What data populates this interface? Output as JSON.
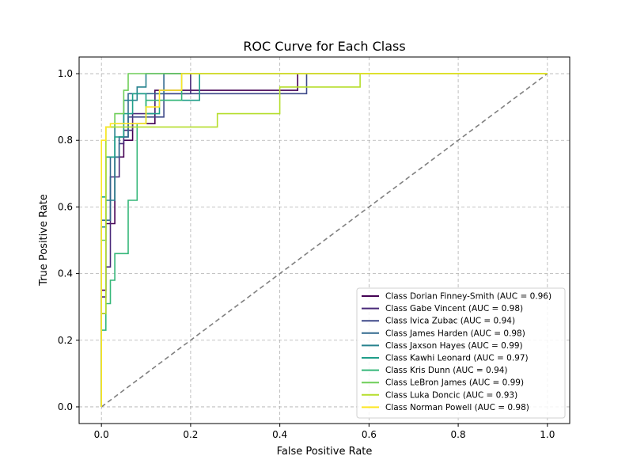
{
  "chart_data": {
    "type": "line",
    "title": "ROC Curve for Each Class",
    "xlabel": "False Positive Rate",
    "ylabel": "True Positive Rate",
    "xlim": [
      -0.05,
      1.05
    ],
    "ylim": [
      -0.05,
      1.05
    ],
    "xticks": [
      0.0,
      0.2,
      0.4,
      0.6,
      0.8,
      1.0
    ],
    "yticks": [
      0.0,
      0.2,
      0.4,
      0.6,
      0.8,
      1.0
    ],
    "xtick_labels": [
      "0.0",
      "0.2",
      "0.4",
      "0.6",
      "0.8",
      "1.0"
    ],
    "ytick_labels": [
      "0.0",
      "0.2",
      "0.4",
      "0.6",
      "0.8",
      "1.0"
    ],
    "grid": true,
    "legend_position": "lower-right",
    "diagonal": {
      "x": [
        0,
        1
      ],
      "y": [
        0,
        1
      ],
      "color": "#808080",
      "style": "dashed"
    },
    "series": [
      {
        "name": "Class Dorian Finney-Smith (AUC = 0.96)",
        "color": "#440154",
        "x": [
          0,
          0,
          0.01,
          0.01,
          0.03,
          0.03,
          0.05,
          0.05,
          0.07,
          0.07,
          0.12,
          0.12,
          0.44,
          0.44,
          1.0
        ],
        "y": [
          0,
          0.35,
          0.35,
          0.55,
          0.55,
          0.75,
          0.75,
          0.8,
          0.8,
          0.85,
          0.85,
          0.95,
          0.95,
          1.0,
          1.0
        ]
      },
      {
        "name": "Class Gabe Vincent (AUC = 0.98)",
        "color": "#482878",
        "x": [
          0,
          0,
          0.01,
          0.01,
          0.02,
          0.02,
          0.04,
          0.04,
          0.05,
          0.05,
          0.07,
          0.07,
          0.12,
          0.12,
          0.2,
          0.2,
          1.0
        ],
        "y": [
          0,
          0.33,
          0.33,
          0.42,
          0.42,
          0.69,
          0.69,
          0.79,
          0.79,
          0.83,
          0.83,
          0.88,
          0.88,
          0.94,
          0.94,
          1.0,
          1.0
        ]
      },
      {
        "name": "Class Ivica Zubac (AUC = 0.94)",
        "color": "#3e4989",
        "x": [
          0,
          0,
          0.01,
          0.01,
          0.04,
          0.04,
          0.06,
          0.06,
          0.14,
          0.14,
          0.46,
          0.46,
          1.0
        ],
        "y": [
          0,
          0.28,
          0.28,
          0.75,
          0.75,
          0.81,
          0.81,
          0.87,
          0.87,
          0.94,
          0.94,
          1.0,
          1.0
        ]
      },
      {
        "name": "Class James Harden (AUC = 0.98)",
        "color": "#31688e",
        "x": [
          0,
          0,
          0.02,
          0.02,
          0.04,
          0.04,
          0.06,
          0.06,
          0.08,
          0.08,
          0.12,
          0.12,
          0.14,
          0.14,
          1.0
        ],
        "y": [
          0,
          0.56,
          0.56,
          0.75,
          0.75,
          0.81,
          0.81,
          0.94,
          0.94,
          0.94,
          0.94,
          0.94,
          0.94,
          1.0,
          1.0
        ]
      },
      {
        "name": "Class Jaxson Hayes (AUC = 0.99)",
        "color": "#26828e",
        "x": [
          0,
          0,
          0.01,
          0.01,
          0.03,
          0.03,
          0.05,
          0.05,
          0.08,
          0.08,
          0.1,
          0.1,
          0.12,
          0.12,
          1.0
        ],
        "y": [
          0,
          0.54,
          0.54,
          0.62,
          0.62,
          0.85,
          0.85,
          0.92,
          0.92,
          0.96,
          0.96,
          1.0,
          1.0,
          1.0,
          1.0
        ]
      },
      {
        "name": "Class Kawhi Leonard (AUC = 0.97)",
        "color": "#1f9e89",
        "x": [
          0,
          0,
          0.01,
          0.01,
          0.03,
          0.03,
          0.05,
          0.05,
          0.07,
          0.07,
          0.1,
          0.1,
          0.13,
          0.13,
          0.22,
          0.22,
          1.0
        ],
        "y": [
          0,
          0.63,
          0.63,
          0.75,
          0.75,
          0.81,
          0.81,
          0.88,
          0.88,
          0.94,
          0.94,
          0.88,
          0.88,
          0.92,
          0.92,
          1.0,
          1.0
        ]
      },
      {
        "name": "Class Kris Dunn (AUC = 0.94)",
        "color": "#35b779",
        "x": [
          0,
          0,
          0.01,
          0.01,
          0.02,
          0.02,
          0.03,
          0.03,
          0.06,
          0.06,
          0.08,
          0.08,
          0.1,
          0.1,
          0.18,
          0.18,
          1.0
        ],
        "y": [
          0,
          0.23,
          0.23,
          0.31,
          0.31,
          0.38,
          0.38,
          0.46,
          0.46,
          0.62,
          0.62,
          0.85,
          0.85,
          0.92,
          0.92,
          1.0,
          1.0
        ]
      },
      {
        "name": "Class LeBron James (AUC = 0.99)",
        "color": "#6ece58",
        "x": [
          0,
          0,
          0.01,
          0.01,
          0.03,
          0.03,
          0.05,
          0.05,
          0.06,
          0.06,
          1.0
        ],
        "y": [
          0,
          0.5,
          0.5,
          0.84,
          0.84,
          0.88,
          0.88,
          0.95,
          0.95,
          1.0,
          1.0
        ]
      },
      {
        "name": "Class Luka Doncic (AUC = 0.93)",
        "color": "#b5de2b",
        "x": [
          0,
          0,
          0.01,
          0.01,
          0.12,
          0.12,
          0.26,
          0.26,
          0.4,
          0.4,
          0.58,
          0.58,
          1.0
        ],
        "y": [
          0,
          0.28,
          0.28,
          0.84,
          0.84,
          0.84,
          0.84,
          0.88,
          0.88,
          0.96,
          0.96,
          1.0,
          1.0
        ]
      },
      {
        "name": "Class Norman Powell (AUC = 0.98)",
        "color": "#fde725",
        "x": [
          0,
          0,
          0.01,
          0.01,
          0.02,
          0.02,
          0.1,
          0.1,
          0.13,
          0.13,
          0.18,
          0.18,
          1.0
        ],
        "y": [
          0,
          0.8,
          0.8,
          0.84,
          0.84,
          0.85,
          0.85,
          0.9,
          0.9,
          0.95,
          0.95,
          1.0,
          1.0
        ]
      }
    ]
  }
}
